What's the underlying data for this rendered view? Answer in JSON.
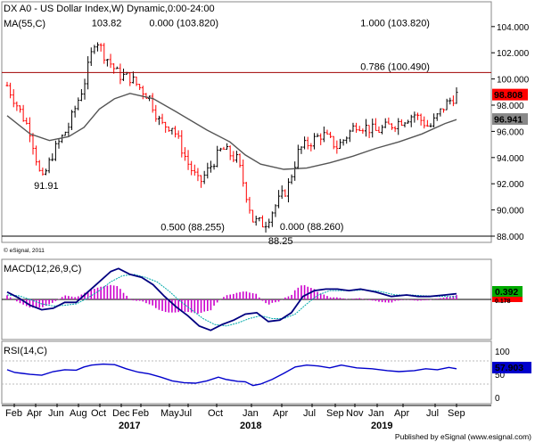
{
  "chart_data": [
    {
      "type": "candlestick",
      "title": "DX A0 - US Dollar Index,W) Dynamic,0:00-24:00",
      "indicator_label": "MA(55,C)",
      "ylim": [
        88,
        104.6
      ],
      "yticks": [
        "104.000",
        "102.000",
        "100.000",
        "98.000",
        "96.000",
        "94.000",
        "92.000",
        "90.000",
        "88.000"
      ],
      "last_price": "98.808",
      "ma_value": "96.941",
      "colors": {
        "up": "#000000",
        "down": "#ff0000",
        "ma": "#555555",
        "fib_line": "#a00000",
        "last_badge": "#ff0000",
        "ma_badge": "#888888"
      },
      "annotations": [
        {
          "text": "103.82",
          "x": 1.1,
          "y": 103.82
        },
        {
          "text": "0.000 (103.820)",
          "x": 1.85,
          "y": 103.82
        },
        {
          "text": "1.000 (103.820)",
          "x": 4.6,
          "y": 103.82
        },
        {
          "text": "0.786 (100.490)",
          "x": 4.6,
          "y": 100.49
        },
        {
          "text": "91.91",
          "x": 0.35,
          "y": 91.4
        },
        {
          "text": "0.500 (88.255)",
          "x": 2.0,
          "y": 88.255
        },
        {
          "text": "0.000 (88.260)",
          "x": 3.55,
          "y": 88.26
        },
        {
          "text": "88.25",
          "x": 3.4,
          "y": 87.2
        }
      ],
      "fib_level": 100.49,
      "watermark": "© eSignal, 2011",
      "ohlc_anchors": [
        [
          0,
          99.5
        ],
        [
          0.3,
          96.0
        ],
        [
          0.45,
          92.1
        ],
        [
          0.6,
          94.4
        ],
        [
          0.8,
          96.4
        ],
        [
          1.0,
          99.6
        ],
        [
          1.15,
          103.2
        ],
        [
          1.25,
          102.0
        ],
        [
          1.45,
          100.3
        ],
        [
          1.6,
          100.1
        ],
        [
          1.85,
          98.6
        ],
        [
          2.0,
          96.5
        ],
        [
          2.15,
          96.4
        ],
        [
          2.35,
          93.6
        ],
        [
          2.5,
          92.0
        ],
        [
          2.8,
          94.7
        ],
        [
          3.0,
          93.8
        ],
        [
          3.1,
          91.5
        ],
        [
          3.2,
          89.2
        ],
        [
          3.35,
          88.9
        ],
        [
          3.5,
          90.4
        ],
        [
          3.65,
          91.7
        ],
        [
          3.8,
          94.6
        ],
        [
          4.1,
          95.8
        ],
        [
          4.3,
          94.8
        ],
        [
          4.55,
          96.6
        ],
        [
          4.8,
          96.0
        ],
        [
          5.05,
          96.6
        ],
        [
          5.3,
          97.3
        ],
        [
          5.5,
          96.3
        ],
        [
          5.7,
          98.0
        ],
        [
          5.85,
          98.8
        ]
      ],
      "ma_points": [
        [
          0,
          97.2
        ],
        [
          0.3,
          95.8
        ],
        [
          0.55,
          95.3
        ],
        [
          0.8,
          95.6
        ],
        [
          1.0,
          96.3
        ],
        [
          1.2,
          97.7
        ],
        [
          1.4,
          98.5
        ],
        [
          1.6,
          98.9
        ],
        [
          1.9,
          98.5
        ],
        [
          2.2,
          97.5
        ],
        [
          2.6,
          96.1
        ],
        [
          2.9,
          95.2
        ],
        [
          3.1,
          94.2
        ],
        [
          3.3,
          93.5
        ],
        [
          3.6,
          93.1
        ],
        [
          3.9,
          93.2
        ],
        [
          4.2,
          93.6
        ],
        [
          4.5,
          94.1
        ],
        [
          4.8,
          94.7
        ],
        [
          5.1,
          95.2
        ],
        [
          5.4,
          95.8
        ],
        [
          5.7,
          96.6
        ],
        [
          5.85,
          96.9
        ]
      ]
    },
    {
      "type": "line",
      "title": "MACD(12,26,9,C)",
      "macd_value": "0.392",
      "signal_value": "0.178",
      "ylim": [
        -2.6,
        2.6
      ],
      "colors": {
        "macd": "#000080",
        "signal": "#00aaaa",
        "histogram": "#cc00cc",
        "value_badge": "#00aa00",
        "signal_badge": "#ff0000"
      },
      "macd_points": [
        [
          0,
          0.5
        ],
        [
          0.15,
          0.1
        ],
        [
          0.3,
          -0.4
        ],
        [
          0.45,
          -0.7
        ],
        [
          0.6,
          -0.6
        ],
        [
          0.75,
          -0.2
        ],
        [
          0.9,
          -0.2
        ],
        [
          1.05,
          0.5
        ],
        [
          1.2,
          1.2
        ],
        [
          1.35,
          1.9
        ],
        [
          1.45,
          2.1
        ],
        [
          1.6,
          1.7
        ],
        [
          1.75,
          1.5
        ],
        [
          1.9,
          1.0
        ],
        [
          2.05,
          0.2
        ],
        [
          2.2,
          -0.5
        ],
        [
          2.35,
          -1.1
        ],
        [
          2.5,
          -1.8
        ],
        [
          2.65,
          -2.1
        ],
        [
          2.8,
          -1.7
        ],
        [
          2.95,
          -1.4
        ],
        [
          3.1,
          -1.0
        ],
        [
          3.25,
          -0.9
        ],
        [
          3.4,
          -1.5
        ],
        [
          3.55,
          -1.4
        ],
        [
          3.7,
          -0.9
        ],
        [
          3.85,
          0.2
        ],
        [
          4.0,
          0.6
        ],
        [
          4.15,
          0.7
        ],
        [
          4.3,
          0.7
        ],
        [
          4.45,
          0.6
        ],
        [
          4.6,
          0.7
        ],
        [
          4.8,
          0.5
        ],
        [
          5.0,
          0.2
        ],
        [
          5.2,
          0.3
        ],
        [
          5.35,
          0.2
        ],
        [
          5.5,
          0.2
        ],
        [
          5.7,
          0.3
        ],
        [
          5.85,
          0.39
        ]
      ],
      "signal_points": [
        [
          0,
          0.3
        ],
        [
          0.15,
          0.25
        ],
        [
          0.3,
          0.0
        ],
        [
          0.45,
          -0.3
        ],
        [
          0.6,
          -0.45
        ],
        [
          0.75,
          -0.4
        ],
        [
          0.9,
          -0.3
        ],
        [
          1.05,
          0.1
        ],
        [
          1.2,
          0.6
        ],
        [
          1.35,
          1.2
        ],
        [
          1.5,
          1.6
        ],
        [
          1.65,
          1.7
        ],
        [
          1.8,
          1.5
        ],
        [
          1.95,
          1.2
        ],
        [
          2.1,
          0.6
        ],
        [
          2.25,
          -0.1
        ],
        [
          2.4,
          -0.7
        ],
        [
          2.55,
          -1.3
        ],
        [
          2.7,
          -1.7
        ],
        [
          2.85,
          -1.8
        ],
        [
          3.0,
          -1.6
        ],
        [
          3.15,
          -1.3
        ],
        [
          3.3,
          -1.1
        ],
        [
          3.45,
          -1.3
        ],
        [
          3.6,
          -1.3
        ],
        [
          3.75,
          -1.0
        ],
        [
          3.9,
          -0.3
        ],
        [
          4.05,
          0.3
        ],
        [
          4.2,
          0.6
        ],
        [
          4.35,
          0.6
        ],
        [
          4.5,
          0.6
        ],
        [
          4.65,
          0.65
        ],
        [
          4.85,
          0.55
        ],
        [
          5.05,
          0.3
        ],
        [
          5.25,
          0.3
        ],
        [
          5.4,
          0.25
        ],
        [
          5.55,
          0.22
        ],
        [
          5.7,
          0.2
        ],
        [
          5.85,
          0.18
        ]
      ]
    },
    {
      "type": "line",
      "title": "RSI(14,C)",
      "value": "57.903",
      "ylim": [
        0,
        100
      ],
      "yticks": [
        "100",
        "50",
        "0"
      ],
      "colors": {
        "line": "#0000cc",
        "value_badge": "#0000cc",
        "guide": "#bbbbbb"
      },
      "points": [
        [
          0,
          56
        ],
        [
          0.1,
          50
        ],
        [
          0.2,
          48
        ],
        [
          0.3,
          46
        ],
        [
          0.45,
          44
        ],
        [
          0.6,
          52
        ],
        [
          0.75,
          56
        ],
        [
          0.9,
          55
        ],
        [
          1.0,
          62
        ],
        [
          1.1,
          66
        ],
        [
          1.25,
          68
        ],
        [
          1.4,
          67
        ],
        [
          1.55,
          58
        ],
        [
          1.7,
          51
        ],
        [
          1.85,
          47
        ],
        [
          2.0,
          40
        ],
        [
          2.15,
          32
        ],
        [
          2.3,
          28
        ],
        [
          2.45,
          27
        ],
        [
          2.6,
          32
        ],
        [
          2.75,
          40
        ],
        [
          2.85,
          35
        ],
        [
          3.0,
          31
        ],
        [
          3.1,
          30
        ],
        [
          3.2,
          22
        ],
        [
          3.3,
          25
        ],
        [
          3.45,
          35
        ],
        [
          3.6,
          48
        ],
        [
          3.75,
          62
        ],
        [
          3.9,
          66
        ],
        [
          4.05,
          64
        ],
        [
          4.2,
          60
        ],
        [
          4.35,
          66
        ],
        [
          4.55,
          60
        ],
        [
          4.75,
          58
        ],
        [
          4.95,
          54
        ],
        [
          5.1,
          52
        ],
        [
          5.3,
          54
        ],
        [
          5.45,
          58
        ],
        [
          5.6,
          56
        ],
        [
          5.75,
          61
        ],
        [
          5.85,
          58
        ]
      ]
    }
  ],
  "x_axis": {
    "month_labels": [
      "Feb",
      "Apr",
      "Jun",
      "Aug",
      "Oct",
      "Dec",
      "Feb",
      "May",
      "Jul",
      "Oct",
      "Jan",
      "Apr",
      "Jul",
      "Sep",
      "Nov",
      "Jan",
      "Apr",
      "Jul",
      "Sep"
    ],
    "year_labels": [
      "2017",
      "2018",
      "2019"
    ]
  },
  "footer": "Published by eSignal (www.esignal.com)"
}
